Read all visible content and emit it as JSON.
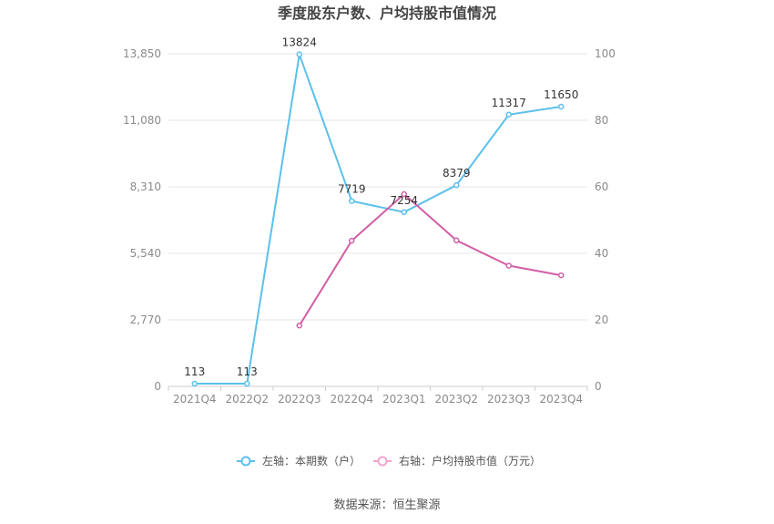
{
  "chart_data": {
    "type": "line",
    "title": "季度股东户数、户均持股市值情况",
    "categories": [
      "2021Q4",
      "2022Q2",
      "2022Q3",
      "2022Q4",
      "2023Q1",
      "2023Q2",
      "2023Q3",
      "2023Q4"
    ],
    "left_axis": {
      "ylim": [
        0,
        13850
      ],
      "ticks": [
        "0",
        "2,770",
        "5,540",
        "8,310",
        "11,080",
        "13,850"
      ],
      "tick_values": [
        0,
        2770,
        5540,
        8310,
        11080,
        13850
      ]
    },
    "right_axis": {
      "ylim": [
        0,
        100
      ],
      "ticks": [
        "0",
        "20",
        "40",
        "60",
        "80",
        "100"
      ],
      "tick_values": [
        0,
        20,
        40,
        60,
        80,
        100
      ]
    },
    "series": [
      {
        "name": "左轴：本期数（户）",
        "axis": "left",
        "color": "#5bc0ec",
        "values": [
          113,
          113,
          13824,
          7719,
          7254,
          8379,
          11317,
          11650
        ],
        "labels": [
          "113",
          "113",
          "13824",
          "7719",
          "7254",
          "8379",
          "11317",
          "11650"
        ]
      },
      {
        "name": "右轴：户均持股市值（万元）",
        "axis": "right",
        "color": "#d35fa6",
        "values": [
          null,
          null,
          18.3,
          43.8,
          57.8,
          43.9,
          36.3,
          33.4
        ]
      }
    ],
    "grid": true,
    "legend_position": "bottom-center",
    "source": "数据来源：恒生聚源"
  }
}
